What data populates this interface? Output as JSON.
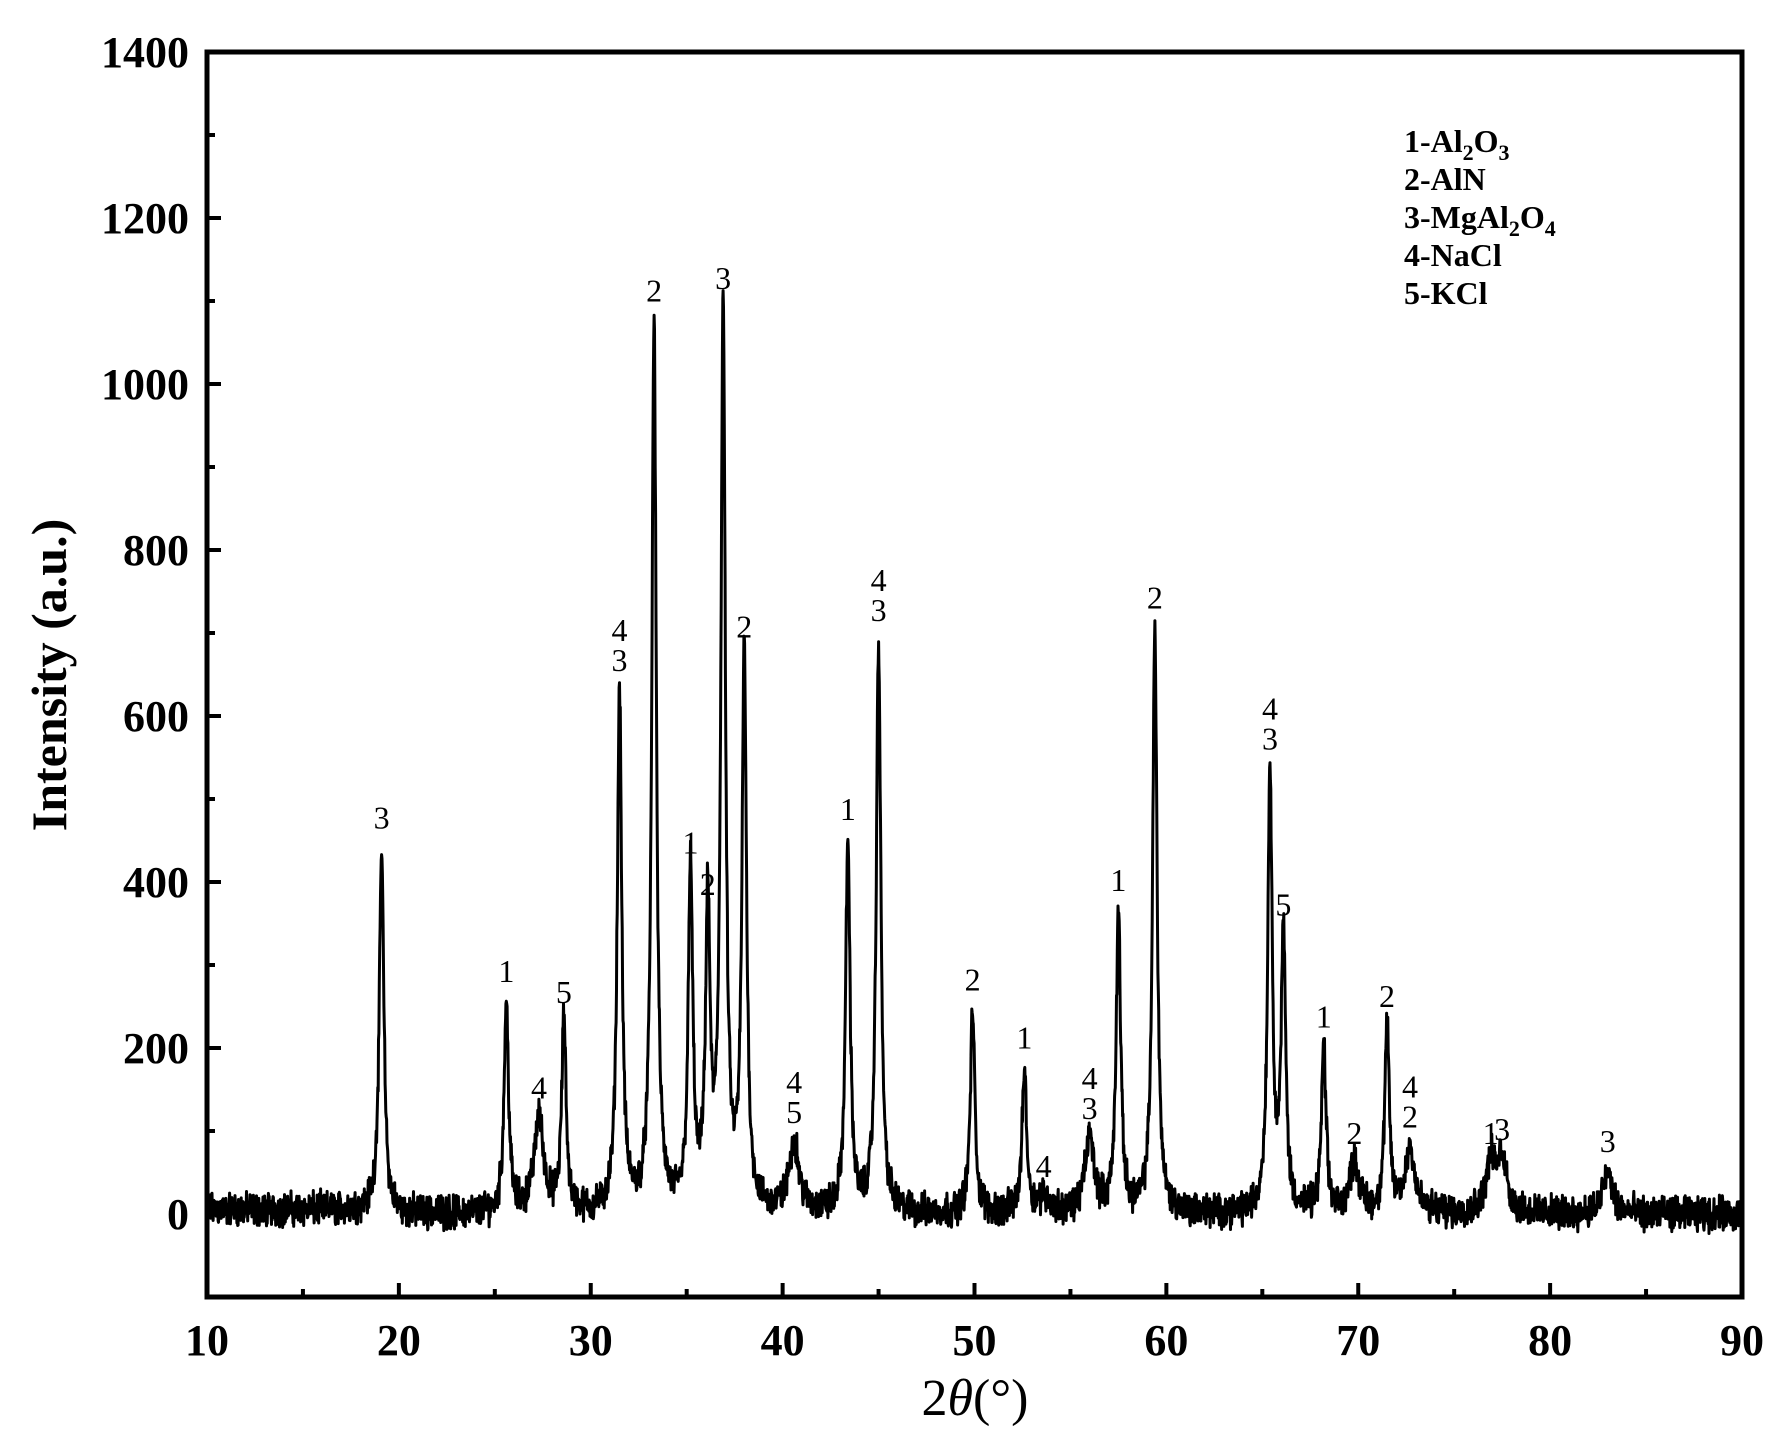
{
  "chart_data": {
    "type": "line",
    "title": "",
    "xlabel": "2θ(°)",
    "xlabel_parts": {
      "prefix": "2",
      "symbol": "θ",
      "suffix": "(°)"
    },
    "ylabel": "Intensity (a.u.)",
    "xlim": [
      10,
      90
    ],
    "ylim": [
      -100,
      1400
    ],
    "xticks": [
      10,
      20,
      30,
      40,
      50,
      60,
      70,
      80,
      90
    ],
    "yticks": [
      0,
      200,
      400,
      600,
      800,
      1000,
      1200,
      1400
    ],
    "grid": false,
    "legend_position": "top-right",
    "legend": [
      "1-Al2O3",
      "2-AlN",
      "3-MgAl2O4",
      "4-NaCl",
      "5-KCl"
    ],
    "line_color": "#000000",
    "baseline_noise_amplitude": 25,
    "peaks": [
      {
        "x": 19.1,
        "y": 450,
        "labels": [
          "3"
        ]
      },
      {
        "x": 25.6,
        "y": 265,
        "labels": [
          "1"
        ]
      },
      {
        "x": 27.3,
        "y": 125,
        "labels": [
          "4"
        ]
      },
      {
        "x": 28.6,
        "y": 240,
        "labels": [
          "5"
        ]
      },
      {
        "x": 31.5,
        "y": 640,
        "labels": [
          "4",
          "3"
        ]
      },
      {
        "x": 33.3,
        "y": 1085,
        "labels": [
          "2"
        ]
      },
      {
        "x": 35.2,
        "y": 420,
        "labels": [
          "1"
        ]
      },
      {
        "x": 36.1,
        "y": 370,
        "labels": [
          "2"
        ]
      },
      {
        "x": 36.9,
        "y": 1100,
        "labels": [
          "3"
        ]
      },
      {
        "x": 38.0,
        "y": 680,
        "labels": [
          "2"
        ]
      },
      {
        "x": 40.6,
        "y": 95,
        "labels": [
          "4",
          "5"
        ]
      },
      {
        "x": 43.4,
        "y": 460,
        "labels": [
          "1"
        ]
      },
      {
        "x": 45.0,
        "y": 700,
        "labels": [
          "4",
          "3"
        ]
      },
      {
        "x": 49.9,
        "y": 255,
        "labels": [
          "2"
        ]
      },
      {
        "x": 52.6,
        "y": 185,
        "labels": [
          "1"
        ]
      },
      {
        "x": 53.6,
        "y": 30,
        "labels": [
          "4"
        ]
      },
      {
        "x": 56.0,
        "y": 100,
        "labels": [
          "4",
          "3"
        ]
      },
      {
        "x": 57.5,
        "y": 375,
        "labels": [
          "1"
        ]
      },
      {
        "x": 59.4,
        "y": 715,
        "labels": [
          "2"
        ]
      },
      {
        "x": 65.4,
        "y": 545,
        "labels": [
          "4",
          "3"
        ]
      },
      {
        "x": 66.1,
        "y": 345,
        "labels": [
          "5"
        ]
      },
      {
        "x": 68.2,
        "y": 210,
        "labels": [
          "1"
        ]
      },
      {
        "x": 69.8,
        "y": 70,
        "labels": [
          "2"
        ]
      },
      {
        "x": 71.5,
        "y": 235,
        "labels": [
          "2"
        ]
      },
      {
        "x": 72.7,
        "y": 90,
        "labels": [
          "4",
          "2"
        ]
      },
      {
        "x": 76.9,
        "y": 70,
        "labels": [
          "1"
        ]
      },
      {
        "x": 77.5,
        "y": 75,
        "labels": [
          "3"
        ]
      },
      {
        "x": 83.0,
        "y": 60,
        "labels": [
          "3"
        ]
      }
    ]
  }
}
